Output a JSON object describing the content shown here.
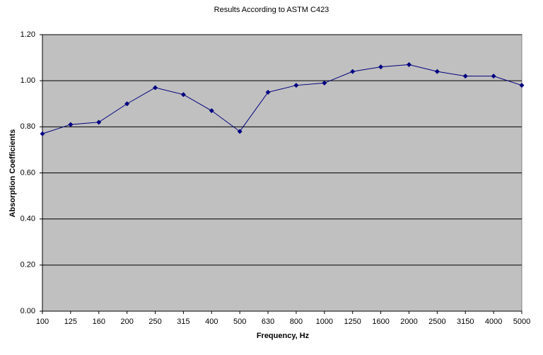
{
  "chart_data": {
    "type": "line",
    "title": "Results According to ASTM C423",
    "x_label": "Frequency, Hz",
    "y_label": "Absorption Coefficients",
    "categories": [
      "100",
      "125",
      "160",
      "200",
      "250",
      "315",
      "400",
      "500",
      "630",
      "800",
      "1000",
      "1250",
      "1600",
      "2000",
      "2500",
      "3150",
      "4000",
      "5000"
    ],
    "series": [
      {
        "color": "#000080",
        "values": [
          0.77,
          0.81,
          0.82,
          0.9,
          0.97,
          0.94,
          0.87,
          0.78,
          0.95,
          0.98,
          0.99,
          1.04,
          1.06,
          1.07,
          1.04,
          1.02,
          1.02,
          0.98
        ]
      }
    ],
    "ylim": [
      0,
      1.2
    ],
    "yticks": [
      {
        "value": 0,
        "label": "0.00"
      },
      {
        "value": 0.2,
        "label": "0.20"
      },
      {
        "value": 0.4,
        "label": "0.40"
      },
      {
        "value": 0.6,
        "label": "0.60"
      },
      {
        "value": 0.8,
        "label": "0.80"
      },
      {
        "value": 1.0,
        "label": "1.00"
      },
      {
        "value": 1.2,
        "label": "1.20"
      }
    ],
    "grid": true,
    "background": "#c0c0c0"
  }
}
